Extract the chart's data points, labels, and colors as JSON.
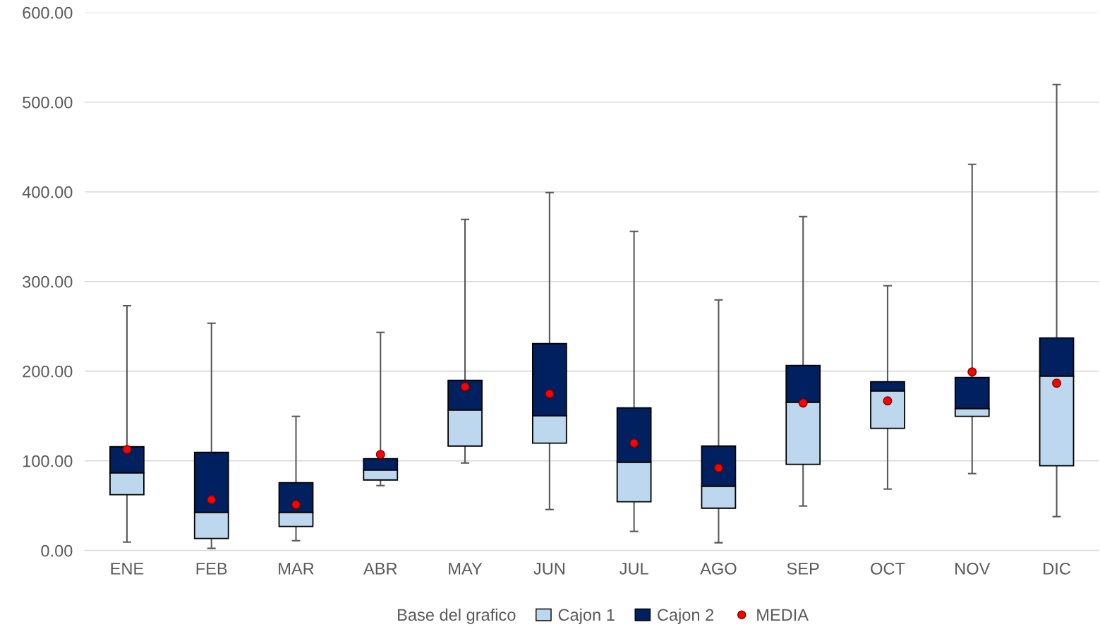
{
  "chart_data": {
    "type": "bar",
    "categories": [
      "ENE",
      "FEB",
      "MAR",
      "ABR",
      "MAY",
      "JUN",
      "JUL",
      "AGO",
      "SEP",
      "OCT",
      "NOV",
      "DIC"
    ],
    "series": [
      {
        "name": "Cajon 1",
        "color": "#bdd7ee",
        "base": [
          62.2,
          13.4,
          26.8,
          78.7,
          116.5,
          119.7,
          54.3,
          47.2,
          96.1,
          136.2,
          149.6,
          94.5
        ],
        "values": [
          24.4,
          29.1,
          15.7,
          11.1,
          40.2,
          30.7,
          44.1,
          24.5,
          69.3,
          41.8,
          8.7,
          100.0
        ]
      },
      {
        "name": "Cajon 2",
        "color": "#002060",
        "base": [
          86.6,
          42.5,
          42.5,
          89.8,
          156.7,
          150.4,
          98.4,
          71.7,
          165.4,
          178.0,
          158.3,
          194.5
        ],
        "values": [
          29.1,
          66.9,
          33.1,
          12.6,
          33.1,
          80.3,
          60.7,
          44.8,
          40.9,
          10.2,
          34.6,
          42.5
        ],
        "errors": [
          [
            9.4,
            273.0
          ],
          [
            2.4,
            253.5
          ],
          [
            11.0,
            149.6
          ],
          [
            72.4,
            243.3
          ],
          [
            97.6,
            369.3
          ],
          [
            45.7,
            399.2
          ],
          [
            21.3,
            355.9
          ],
          [
            8.7,
            279.5
          ],
          [
            49.6,
            372.4
          ],
          [
            68.5,
            295.3
          ],
          [
            85.8,
            430.7
          ],
          [
            37.8,
            519.7
          ]
        ]
      },
      {
        "name": "MEDIA",
        "type": "scatter",
        "color": "#ff0000",
        "values": [
          112.6,
          56.7,
          51.2,
          107.1,
          182.7,
          174.8,
          119.7,
          92.1,
          164.6,
          166.9,
          199.2,
          186.6
        ]
      }
    ],
    "legend_title": "Base del grafico",
    "legend": "bottom",
    "marker": "circle",
    "grid": "y",
    "ylim": [
      0,
      600
    ],
    "yticks": [
      {
        "value": 0,
        "label": "0.00"
      },
      {
        "value": 100,
        "label": "100.00"
      },
      {
        "value": 200,
        "label": "200.00"
      },
      {
        "value": 300,
        "label": "300.00"
      },
      {
        "value": 400,
        "label": "400.00"
      },
      {
        "value": 500,
        "label": "500.00"
      },
      {
        "value": 600,
        "label": "600.00"
      }
    ]
  }
}
